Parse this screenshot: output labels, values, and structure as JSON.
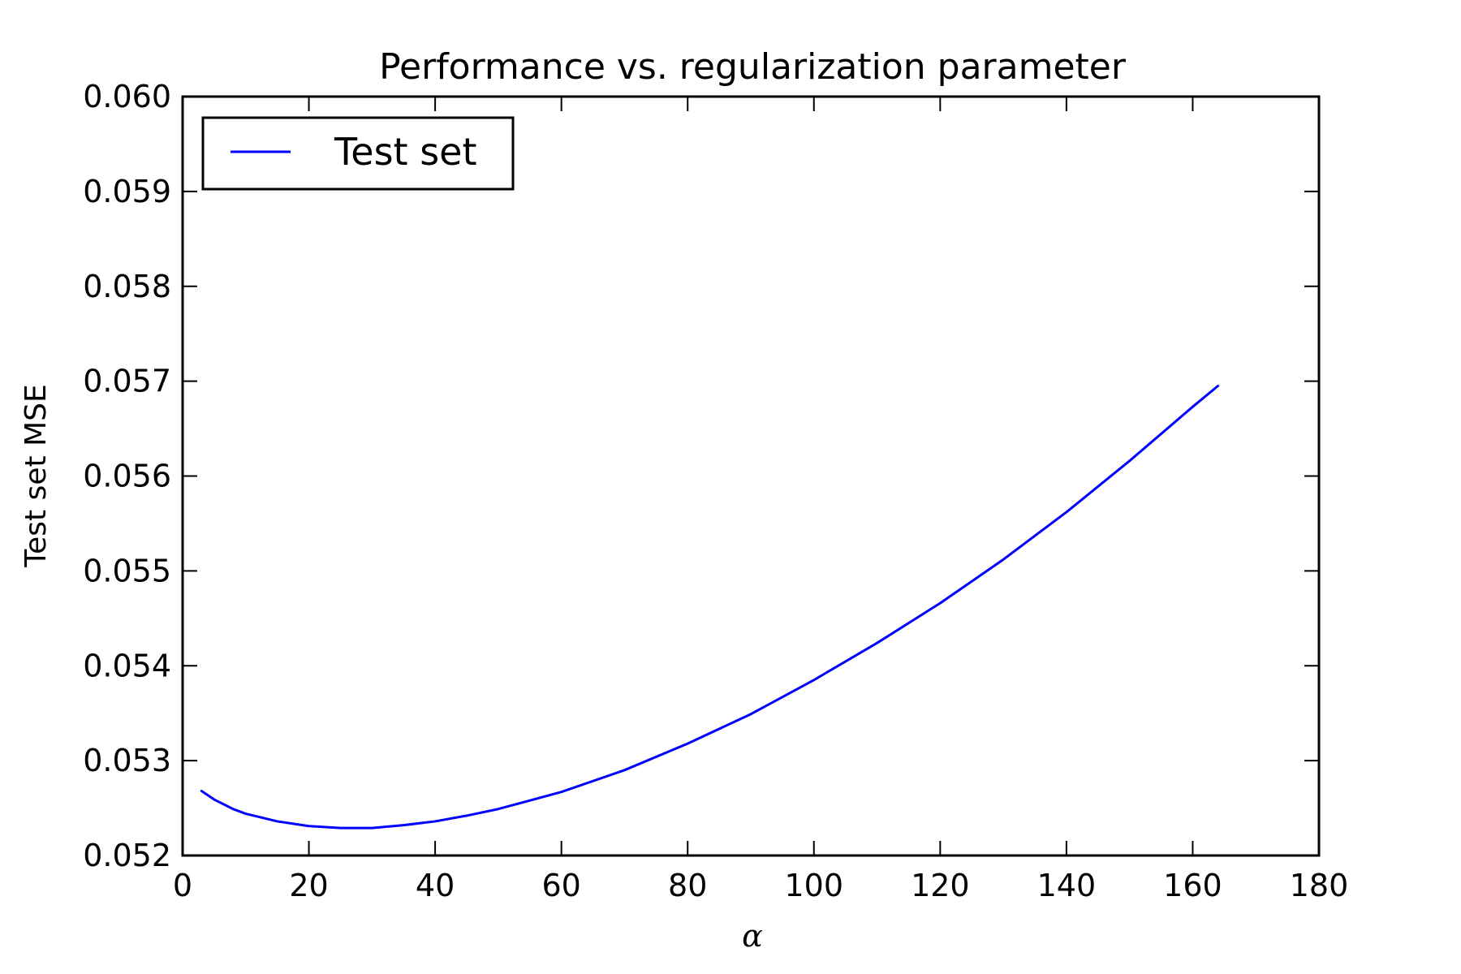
{
  "chart_data": {
    "type": "line",
    "title": "Performance vs. regularization parameter",
    "xlabel": "α",
    "ylabel": "Test set MSE",
    "xlim": [
      0,
      180
    ],
    "ylim": [
      0.052,
      0.06
    ],
    "xticks": [
      "0",
      "20",
      "40",
      "60",
      "80",
      "100",
      "120",
      "140",
      "160",
      "180"
    ],
    "yticks": [
      "0.052",
      "0.053",
      "0.054",
      "0.055",
      "0.056",
      "0.057",
      "0.058",
      "0.059",
      "0.060"
    ],
    "grid": false,
    "legend": {
      "position": "top-left",
      "entries": [
        "Test set"
      ]
    },
    "series": [
      {
        "name": "Test set",
        "color": "#0000ff",
        "x": [
          3,
          5,
          8,
          10,
          15,
          20,
          25,
          30,
          35,
          40,
          45,
          50,
          60,
          70,
          80,
          90,
          100,
          110,
          120,
          130,
          140,
          150,
          160,
          164
        ],
        "y": [
          0.05268,
          0.05259,
          0.05249,
          0.05244,
          0.05236,
          0.05231,
          0.05229,
          0.05229,
          0.05232,
          0.05236,
          0.05242,
          0.05249,
          0.05267,
          0.0529,
          0.05318,
          0.05349,
          0.05385,
          0.05424,
          0.05466,
          0.05512,
          0.05562,
          0.05616,
          0.05673,
          0.05695
        ]
      }
    ]
  }
}
